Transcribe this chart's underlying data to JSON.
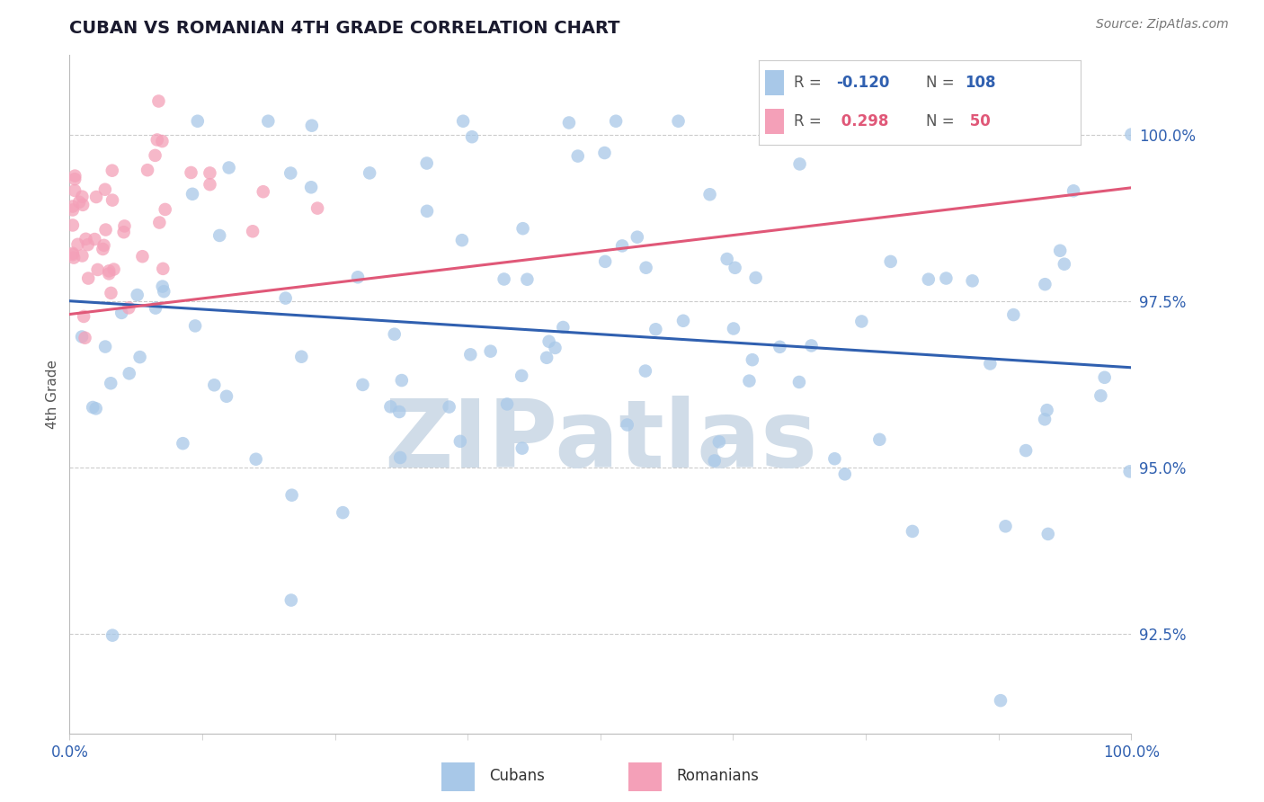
{
  "title": "CUBAN VS ROMANIAN 4TH GRADE CORRELATION CHART",
  "source_text": "Source: ZipAtlas.com",
  "ylabel": "4th Grade",
  "xlim": [
    0,
    100
  ],
  "ylim": [
    91.0,
    101.2
  ],
  "yticks": [
    92.5,
    95.0,
    97.5,
    100.0
  ],
  "cuban_color": "#a8c8e8",
  "romanian_color": "#f4a0b8",
  "cuban_line_color": "#3060b0",
  "romanian_line_color": "#e05878",
  "cuban_R": -0.12,
  "cuban_N": 108,
  "romanian_R": 0.298,
  "romanian_N": 50,
  "watermark": "ZIPatlas",
  "watermark_color": "#d0dce8",
  "background_color": "#ffffff",
  "title_fontsize": 14,
  "grid_color": "#cccccc",
  "cuban_line_start_y": 97.5,
  "cuban_line_end_y": 96.5,
  "romanian_line_start_y": 97.3,
  "romanian_line_end_y": 99.2
}
